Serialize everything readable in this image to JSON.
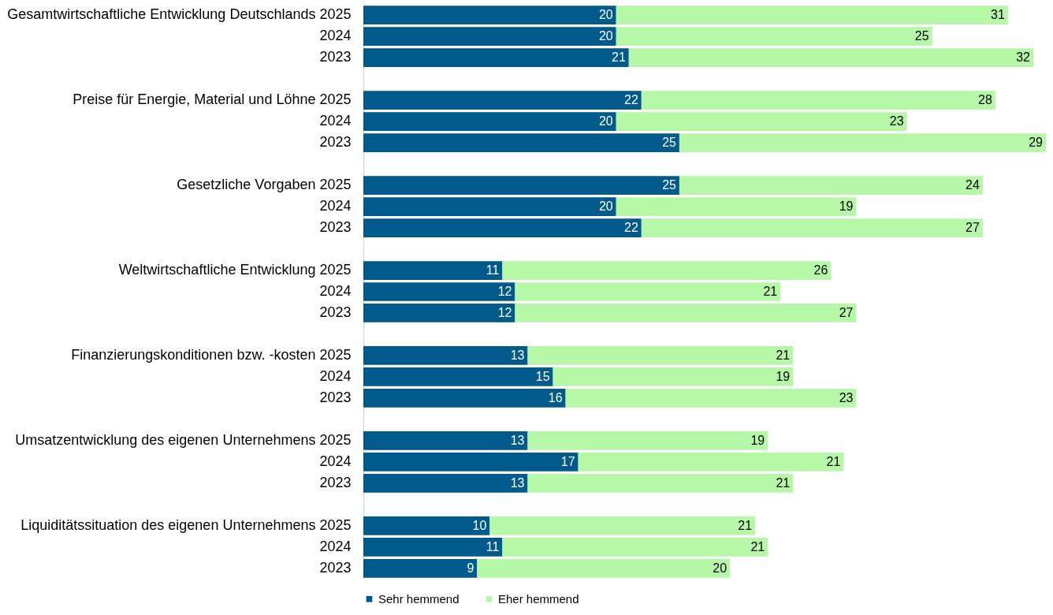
{
  "chart_data": {
    "type": "bar",
    "orientation": "horizontal",
    "stacked": true,
    "data_labels": true,
    "legend": "bottom",
    "categories": [
      "Gesamtwirtschaftliche Entwicklung Deutschlands 2025",
      "2024",
      "2023",
      null,
      "Preise für Energie, Material und Löhne 2025",
      "2024",
      "2023",
      null,
      "Gesetzliche Vorgaben 2025",
      "2024",
      "2023",
      null,
      "Weltwirtschaftliche Entwicklung 2025",
      "2024",
      "2023",
      null,
      "Finanzierungskonditionen bzw. -kosten 2025",
      "2024",
      "2023",
      null,
      "Umsatzentwicklung des eigenen Unternehmens 2025",
      "2024",
      "2023",
      null,
      "Liquiditätssituation des eigenen Unternehmens 2025",
      "2024",
      "2023"
    ],
    "series": [
      {
        "name": "Sehr hemmend",
        "color": "#005a8c",
        "values": [
          20,
          20,
          21,
          null,
          22,
          20,
          25,
          null,
          25,
          20,
          22,
          null,
          11,
          12,
          12,
          null,
          13,
          15,
          16,
          null,
          13,
          17,
          13,
          null,
          10,
          11,
          9
        ]
      },
      {
        "name": "Eher hemmend",
        "color": "#b6f7a8",
        "values": [
          31,
          25,
          32,
          null,
          28,
          23,
          29,
          null,
          24,
          19,
          27,
          null,
          26,
          21,
          27,
          null,
          21,
          19,
          23,
          null,
          19,
          21,
          21,
          null,
          21,
          21,
          20
        ]
      }
    ]
  }
}
